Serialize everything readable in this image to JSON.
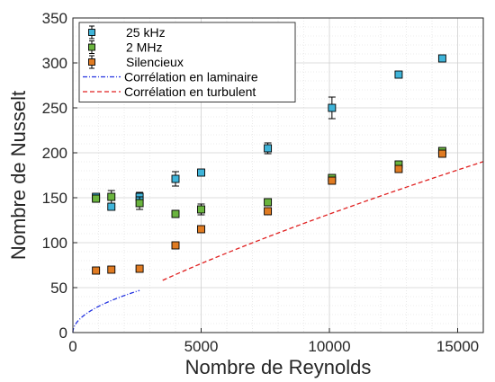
{
  "chart_data": {
    "type": "scatter",
    "title": "",
    "xlabel": "Nombre de Reynolds",
    "ylabel": "Nombre de Nusselt",
    "xlim": [
      0,
      16000
    ],
    "ylim": [
      0,
      350
    ],
    "xticks": [
      "0",
      "5000",
      "10000",
      "15000"
    ],
    "yticks": [
      "0",
      "50",
      "100",
      "150",
      "200",
      "250",
      "300",
      "350"
    ],
    "grid": true,
    "legend_position": "top-left",
    "series": [
      {
        "name": "25 kHz",
        "kind": "errorbar",
        "color": "#3fb4d9",
        "points": [
          {
            "x": 900,
            "y": 151,
            "err": 3
          },
          {
            "x": 1500,
            "y": 140,
            "err": 3
          },
          {
            "x": 2600,
            "y": 151,
            "err": 5
          },
          {
            "x": 4000,
            "y": 171,
            "err": 8
          },
          {
            "x": 5000,
            "y": 178,
            "err": 2
          },
          {
            "x": 7600,
            "y": 205,
            "err": 6
          },
          {
            "x": 10100,
            "y": 250,
            "err": 12
          },
          {
            "x": 12700,
            "y": 287,
            "err": 3
          },
          {
            "x": 14400,
            "y": 305,
            "err": 2
          }
        ]
      },
      {
        "name": "2 MHz",
        "kind": "errorbar",
        "color": "#6ab43e",
        "points": [
          {
            "x": 900,
            "y": 149,
            "err": 4
          },
          {
            "x": 1500,
            "y": 151,
            "err": 7
          },
          {
            "x": 2600,
            "y": 144,
            "err": 7
          },
          {
            "x": 4000,
            "y": 132,
            "err": 4
          },
          {
            "x": 5000,
            "y": 137,
            "err": 6
          },
          {
            "x": 7600,
            "y": 145,
            "err": 3
          },
          {
            "x": 10100,
            "y": 172,
            "err": 2
          },
          {
            "x": 12700,
            "y": 187,
            "err": 2
          },
          {
            "x": 14400,
            "y": 202,
            "err": 2
          }
        ]
      },
      {
        "name": "Silencieux",
        "kind": "errorbar",
        "color": "#e07b22",
        "points": [
          {
            "x": 900,
            "y": 69,
            "err": 3
          },
          {
            "x": 1500,
            "y": 70,
            "err": 2
          },
          {
            "x": 2600,
            "y": 71,
            "err": 2
          },
          {
            "x": 4000,
            "y": 97,
            "err": 2
          },
          {
            "x": 5000,
            "y": 115,
            "err": 2
          },
          {
            "x": 7600,
            "y": 135,
            "err": 2
          },
          {
            "x": 10100,
            "y": 169,
            "err": 2
          },
          {
            "x": 12700,
            "y": 182,
            "err": 3
          },
          {
            "x": 14400,
            "y": 199,
            "err": 2
          }
        ]
      },
      {
        "name": "Corrélation en laminaire",
        "kind": "line",
        "style": "dashdot",
        "color": "#2030e0",
        "x_range": [
          0,
          2600
        ],
        "formula_factor": 0.92,
        "formula_power": 0.5
      },
      {
        "name": "Corrélation en turbulent",
        "kind": "line",
        "style": "dashed",
        "color": "#e02020",
        "x_range": [
          3500,
          16000
        ],
        "formula_factor": 0.1,
        "formula_power": 0.78
      }
    ]
  }
}
